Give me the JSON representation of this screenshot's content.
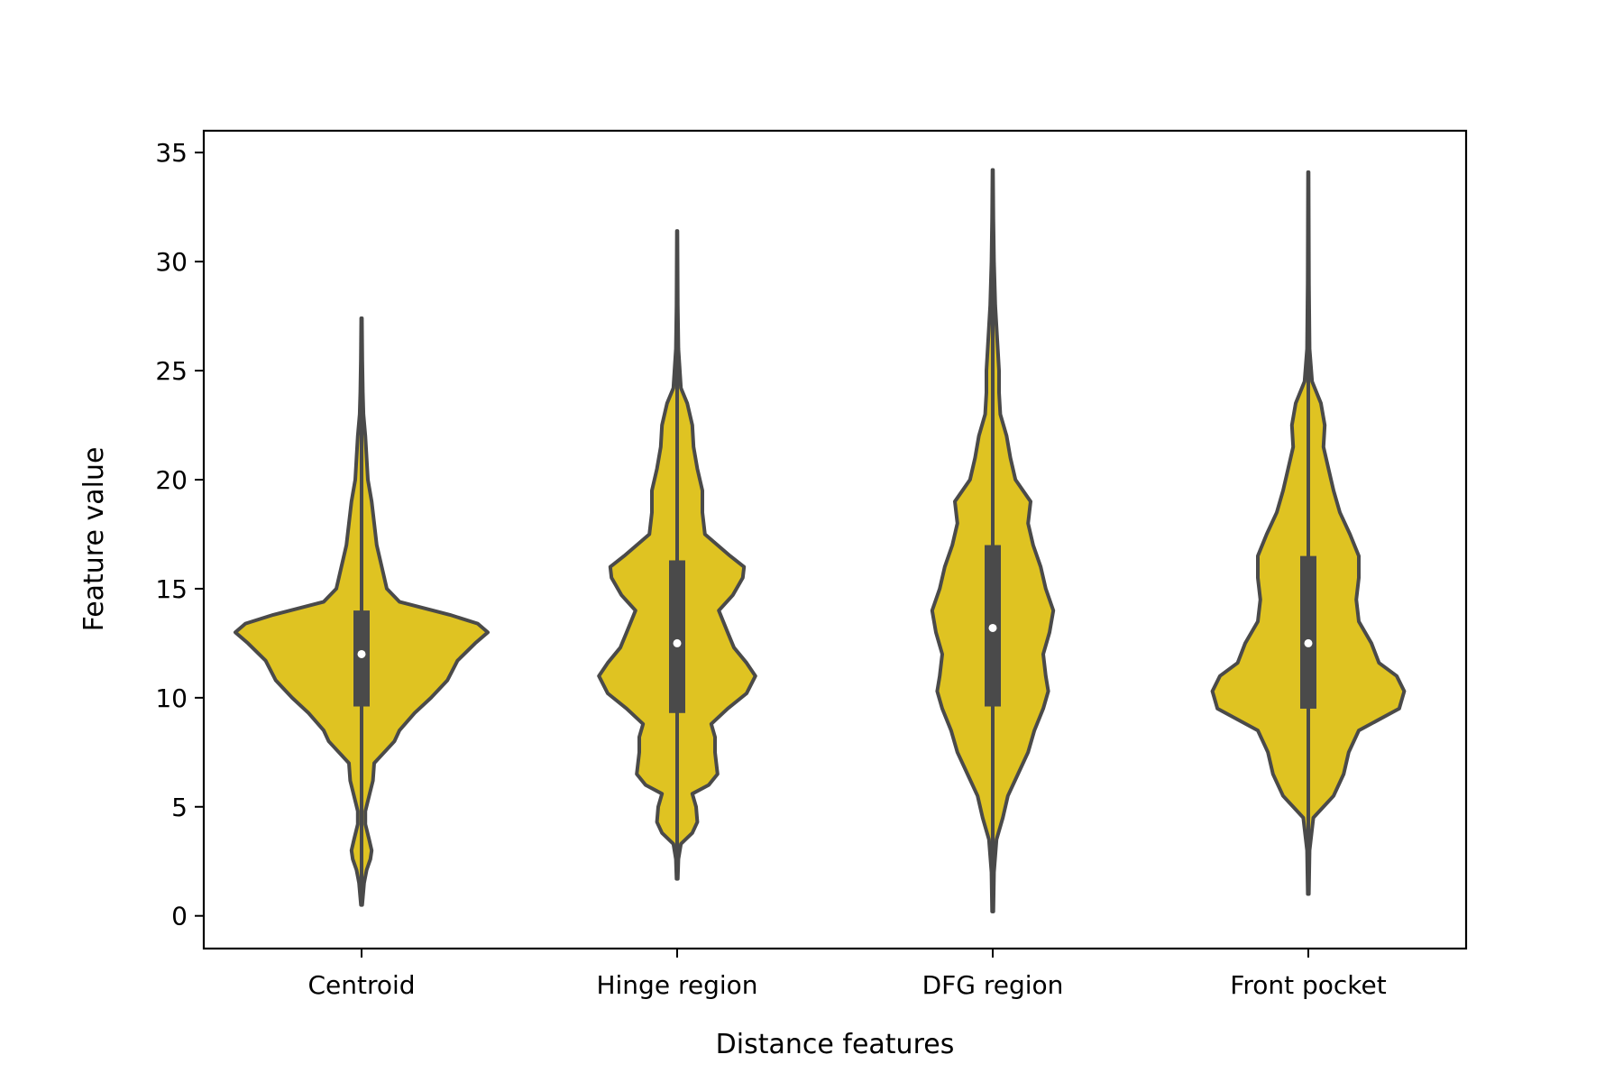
{
  "chart_data": {
    "type": "violin",
    "xlabel": "Distance features",
    "ylabel": "Feature value",
    "ylim": [
      -1.5,
      36
    ],
    "yticks": [
      0,
      5,
      10,
      15,
      20,
      25,
      30,
      35
    ],
    "colors": {
      "fill": "#dfc322",
      "stroke": "#4a4a4a",
      "median": "#ffffff"
    },
    "categories": [
      "Centroid",
      "Hinge region",
      "DFG region",
      "Front pocket"
    ],
    "series": [
      {
        "category": "Centroid",
        "min": 0.5,
        "q1": 9.6,
        "median": 12.0,
        "q3": 14.0,
        "max": 27.4,
        "whisker_low": 2.0,
        "whisker_high": 19.4,
        "density": [
          [
            0.5,
            0.005
          ],
          [
            1.5,
            0.02
          ],
          [
            2.1,
            0.04
          ],
          [
            2.6,
            0.07
          ],
          [
            3.0,
            0.08
          ],
          [
            3.5,
            0.06
          ],
          [
            4.2,
            0.03
          ],
          [
            4.8,
            0.03
          ],
          [
            5.5,
            0.06
          ],
          [
            6.2,
            0.09
          ],
          [
            7.0,
            0.1
          ],
          [
            7.5,
            0.18
          ],
          [
            8.0,
            0.26
          ],
          [
            8.5,
            0.3
          ],
          [
            9.3,
            0.42
          ],
          [
            10.0,
            0.55
          ],
          [
            10.8,
            0.68
          ],
          [
            11.7,
            0.76
          ],
          [
            12.5,
            0.9
          ],
          [
            13.0,
            1.0
          ],
          [
            13.4,
            0.92
          ],
          [
            13.8,
            0.7
          ],
          [
            14.4,
            0.3
          ],
          [
            15.0,
            0.2
          ],
          [
            16.0,
            0.16
          ],
          [
            17.0,
            0.12
          ],
          [
            18.0,
            0.1
          ],
          [
            19.0,
            0.08
          ],
          [
            20.0,
            0.05
          ],
          [
            21.0,
            0.04
          ],
          [
            22.0,
            0.03
          ],
          [
            23.0,
            0.015
          ],
          [
            24.0,
            0.01
          ],
          [
            25.5,
            0.006
          ],
          [
            27.4,
            0.003
          ]
        ]
      },
      {
        "category": "Hinge region",
        "min": 1.7,
        "q1": 9.3,
        "median": 12.5,
        "q3": 16.3,
        "max": 31.4,
        "whisker_low": 3.3,
        "whisker_high": 24.0,
        "density": [
          [
            1.7,
            0.005
          ],
          [
            2.6,
            0.01
          ],
          [
            3.3,
            0.03
          ],
          [
            3.8,
            0.12
          ],
          [
            4.3,
            0.16
          ],
          [
            5.0,
            0.15
          ],
          [
            5.6,
            0.12
          ],
          [
            6.0,
            0.25
          ],
          [
            6.5,
            0.32
          ],
          [
            7.5,
            0.3
          ],
          [
            8.2,
            0.3
          ],
          [
            8.8,
            0.27
          ],
          [
            9.5,
            0.4
          ],
          [
            10.2,
            0.55
          ],
          [
            11.0,
            0.62
          ],
          [
            11.6,
            0.55
          ],
          [
            12.3,
            0.45
          ],
          [
            13.0,
            0.4
          ],
          [
            14.0,
            0.33
          ],
          [
            14.7,
            0.44
          ],
          [
            15.5,
            0.52
          ],
          [
            16.0,
            0.53
          ],
          [
            16.5,
            0.42
          ],
          [
            17.5,
            0.22
          ],
          [
            18.5,
            0.2
          ],
          [
            19.5,
            0.2
          ],
          [
            20.5,
            0.16
          ],
          [
            21.5,
            0.13
          ],
          [
            22.5,
            0.12
          ],
          [
            23.5,
            0.08
          ],
          [
            24.2,
            0.03
          ],
          [
            26.0,
            0.01
          ],
          [
            28.0,
            0.005
          ],
          [
            31.4,
            0.002
          ]
        ]
      },
      {
        "category": "DFG region",
        "min": 0.2,
        "q1": 9.6,
        "median": 13.2,
        "q3": 17.0,
        "max": 34.2,
        "whisker_low": 3.5,
        "whisker_high": 27.0,
        "density": [
          [
            0.2,
            0.005
          ],
          [
            2.0,
            0.01
          ],
          [
            3.5,
            0.03
          ],
          [
            4.5,
            0.08
          ],
          [
            5.5,
            0.12
          ],
          [
            6.5,
            0.2
          ],
          [
            7.5,
            0.28
          ],
          [
            8.5,
            0.33
          ],
          [
            9.5,
            0.4
          ],
          [
            10.3,
            0.44
          ],
          [
            11.0,
            0.42
          ],
          [
            12.0,
            0.4
          ],
          [
            13.0,
            0.45
          ],
          [
            14.0,
            0.48
          ],
          [
            15.0,
            0.42
          ],
          [
            16.0,
            0.38
          ],
          [
            17.0,
            0.32
          ],
          [
            18.0,
            0.28
          ],
          [
            19.0,
            0.3
          ],
          [
            20.0,
            0.18
          ],
          [
            21.0,
            0.14
          ],
          [
            22.0,
            0.11
          ],
          [
            23.0,
            0.06
          ],
          [
            24.0,
            0.05
          ],
          [
            25.0,
            0.05
          ],
          [
            26.0,
            0.04
          ],
          [
            27.0,
            0.03
          ],
          [
            28.0,
            0.02
          ],
          [
            30.0,
            0.01
          ],
          [
            32.0,
            0.005
          ],
          [
            34.2,
            0.002
          ]
        ]
      },
      {
        "category": "Front pocket",
        "min": 1.0,
        "q1": 9.5,
        "median": 12.5,
        "q3": 16.5,
        "max": 34.1,
        "whisker_low": 4.7,
        "whisker_high": 24.0,
        "density": [
          [
            1.0,
            0.004
          ],
          [
            3.0,
            0.01
          ],
          [
            4.5,
            0.04
          ],
          [
            5.5,
            0.2
          ],
          [
            6.5,
            0.28
          ],
          [
            7.5,
            0.32
          ],
          [
            8.5,
            0.4
          ],
          [
            9.5,
            0.72
          ],
          [
            10.3,
            0.76
          ],
          [
            11.0,
            0.7
          ],
          [
            11.6,
            0.56
          ],
          [
            12.5,
            0.5
          ],
          [
            13.5,
            0.4
          ],
          [
            14.5,
            0.38
          ],
          [
            15.5,
            0.4
          ],
          [
            16.5,
            0.4
          ],
          [
            17.5,
            0.33
          ],
          [
            18.5,
            0.25
          ],
          [
            19.5,
            0.2
          ],
          [
            20.5,
            0.16
          ],
          [
            21.5,
            0.12
          ],
          [
            22.5,
            0.13
          ],
          [
            23.5,
            0.1
          ],
          [
            24.5,
            0.03
          ],
          [
            26.0,
            0.01
          ],
          [
            29.0,
            0.005
          ],
          [
            34.1,
            0.002
          ]
        ]
      }
    ]
  }
}
